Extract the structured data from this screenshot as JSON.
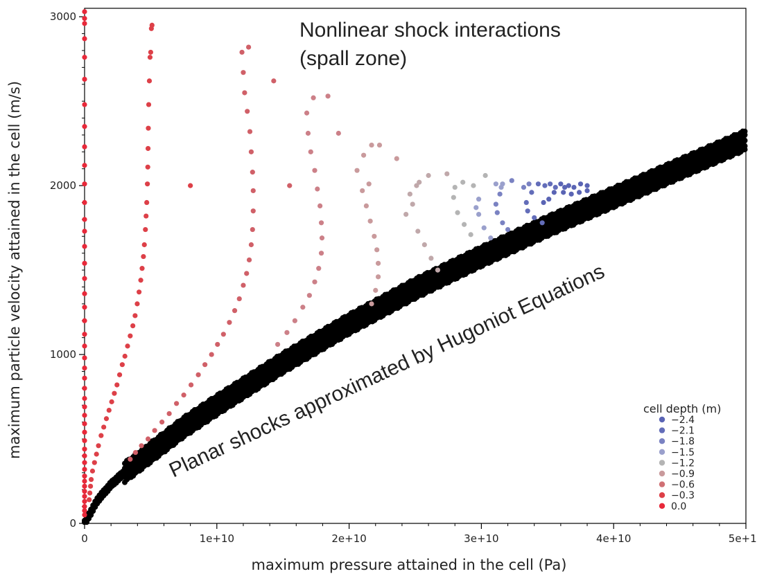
{
  "chart_data": {
    "type": "scatter",
    "xlabel": "maximum pressure attained in the cell (Pa)",
    "ylabel": "maximum particle velocity attained in the cell (m/s)",
    "xlim": [
      0,
      50000000000.0
    ],
    "ylim": [
      0,
      3050
    ],
    "x_ticks": [
      0,
      10000000000.0,
      20000000000.0,
      30000000000.0,
      40000000000.0,
      50000000000.0
    ],
    "x_tick_labels": [
      "0",
      "1e+10",
      "2e+10",
      "3e+10",
      "4e+10",
      "5e+10"
    ],
    "y_ticks": [
      0,
      1000,
      2000,
      3000
    ],
    "y_tick_labels": [
      "0",
      "1000",
      "2000",
      "3000"
    ],
    "grid": false,
    "legend_placement": "bottom-right",
    "legend": {
      "title": "cell depth (m)",
      "entries": [
        {
          "label": "−2.4",
          "color": "#5a64b4"
        },
        {
          "label": "−2.1",
          "color": "#636db9"
        },
        {
          "label": "−1.8",
          "color": "#7a82c2"
        },
        {
          "label": "−1.5",
          "color": "#9aa0cc"
        },
        {
          "label": "−1.2",
          "color": "#b4b4b4"
        },
        {
          "label": "−0.9",
          "color": "#c99a9c"
        },
        {
          "label": "−0.6",
          "color": "#d07074"
        },
        {
          "label": "−0.3",
          "color": "#dd4048"
        },
        {
          "label": " 0.0",
          "color": "#e8293a"
        }
      ]
    },
    "annotations": [
      {
        "text": "Nonlinear shock interactions",
        "text2": "(spall zone)"
      },
      {
        "text": "Planar shocks approximated by Hugoniot Equations"
      }
    ],
    "series": [
      {
        "color": "#e8293a",
        "points": [
          [
            0,
            3030
          ],
          [
            0,
            2990
          ],
          [
            0,
            2960
          ],
          [
            0,
            2870
          ],
          [
            0,
            2760
          ],
          [
            0,
            2630
          ],
          [
            0,
            2480
          ],
          [
            0,
            2350
          ],
          [
            0,
            2230
          ],
          [
            0,
            2120
          ],
          [
            0,
            2010
          ],
          [
            0,
            1900
          ],
          [
            0,
            1800
          ],
          [
            0,
            1730
          ],
          [
            0,
            1640
          ],
          [
            0,
            1540
          ],
          [
            0,
            1450
          ],
          [
            0,
            1360
          ],
          [
            0,
            1280
          ],
          [
            0,
            1200
          ],
          [
            0,
            1120
          ],
          [
            0,
            1050
          ],
          [
            0,
            980
          ],
          [
            0,
            920
          ],
          [
            0,
            860
          ],
          [
            0,
            800
          ],
          [
            0,
            740
          ],
          [
            0,
            690
          ],
          [
            0,
            640
          ],
          [
            0,
            590
          ],
          [
            0,
            540
          ],
          [
            0,
            490
          ],
          [
            0,
            440
          ],
          [
            0,
            400
          ],
          [
            0,
            360
          ],
          [
            0,
            320
          ],
          [
            0,
            280
          ],
          [
            0,
            250
          ],
          [
            0,
            220
          ],
          [
            0,
            190
          ],
          [
            0,
            160
          ],
          [
            0,
            130
          ],
          [
            0,
            100
          ],
          [
            0,
            75
          ],
          [
            0,
            50
          ]
        ]
      },
      {
        "color": "#dd4048",
        "points": [
          [
            5100000000.0,
            2950
          ],
          [
            5050000000.0,
            2930
          ],
          [
            5000000000.0,
            2790
          ],
          [
            4950000000.0,
            2760
          ],
          [
            4900000000.0,
            2620
          ],
          [
            4850000000.0,
            2480
          ],
          [
            4820000000.0,
            2340
          ],
          [
            4800000000.0,
            2220
          ],
          [
            4780000000.0,
            2110
          ],
          [
            4750000000.0,
            2010
          ],
          [
            4700000000.0,
            1900
          ],
          [
            4650000000.0,
            1820
          ],
          [
            4600000000.0,
            1740
          ],
          [
            4520000000.0,
            1650
          ],
          [
            4450000000.0,
            1580
          ],
          [
            4350000000.0,
            1510
          ],
          [
            4250000000.0,
            1440
          ],
          [
            4120000000.0,
            1370
          ],
          [
            3980000000.0,
            1300
          ],
          [
            3820000000.0,
            1230
          ],
          [
            3650000000.0,
            1170
          ],
          [
            3450000000.0,
            1110
          ],
          [
            3250000000.0,
            1050
          ],
          [
            3050000000.0,
            990
          ],
          [
            2850000000.0,
            940
          ],
          [
            2650000000.0,
            880
          ],
          [
            2450000000.0,
            820
          ],
          [
            2250000000.0,
            770
          ],
          [
            2050000000.0,
            720
          ],
          [
            1850000000.0,
            670
          ],
          [
            1650000000.0,
            620
          ],
          [
            1450000000.0,
            570
          ],
          [
            1250000000.0,
            520
          ],
          [
            1050000000.0,
            460
          ],
          [
            900000000.0,
            410
          ],
          [
            750000000.0,
            360
          ],
          [
            600000000.0,
            310
          ],
          [
            500000000.0,
            260
          ],
          [
            450000000.0,
            220
          ],
          [
            400000000.0,
            180
          ],
          [
            350000000.0,
            140
          ],
          [
            8000000000.0,
            2000
          ]
        ]
      },
      {
        "color": "#d06068",
        "points": [
          [
            12400000000.0,
            2820
          ],
          [
            11900000000.0,
            2790
          ],
          [
            12000000000.0,
            2670
          ],
          [
            12100000000.0,
            2550
          ],
          [
            12300000000.0,
            2440
          ],
          [
            12500000000.0,
            2320
          ],
          [
            12600000000.0,
            2200
          ],
          [
            12700000000.0,
            2080
          ],
          [
            12750000000.0,
            1970
          ],
          [
            12750000000.0,
            1850
          ],
          [
            12700000000.0,
            1740
          ],
          [
            12600000000.0,
            1650
          ],
          [
            12450000000.0,
            1560
          ],
          [
            12250000000.0,
            1480
          ],
          [
            12000000000.0,
            1410
          ],
          [
            11700000000.0,
            1330
          ],
          [
            11350000000.0,
            1260
          ],
          [
            10950000000.0,
            1190
          ],
          [
            10500000000.0,
            1120
          ],
          [
            10050000000.0,
            1060
          ],
          [
            9600000000.0,
            1000
          ],
          [
            9100000000.0,
            940
          ],
          [
            8600000000.0,
            880
          ],
          [
            8050000000.0,
            820
          ],
          [
            7500000000.0,
            760
          ],
          [
            6950000000.0,
            710
          ],
          [
            6400000000.0,
            650
          ],
          [
            5850000000.0,
            600
          ],
          [
            5300000000.0,
            550
          ],
          [
            4800000000.0,
            500
          ],
          [
            4300000000.0,
            460
          ],
          [
            3850000000.0,
            420
          ],
          [
            3450000000.0,
            380
          ],
          [
            14300000000.0,
            2620
          ],
          [
            15500000000.0,
            2000
          ]
        ]
      },
      {
        "color": "#cc8088",
        "points": [
          [
            17300000000.0,
            2520
          ],
          [
            18400000000.0,
            2530
          ],
          [
            16800000000.0,
            2430
          ],
          [
            16900000000.0,
            2310
          ],
          [
            17100000000.0,
            2200
          ],
          [
            17400000000.0,
            2090
          ],
          [
            17600000000.0,
            1980
          ],
          [
            17800000000.0,
            1880
          ],
          [
            17900000000.0,
            1780
          ],
          [
            17950000000.0,
            1690
          ],
          [
            17900000000.0,
            1600
          ],
          [
            17700000000.0,
            1510
          ],
          [
            17400000000.0,
            1430
          ],
          [
            17000000000.0,
            1350
          ],
          [
            16500000000.0,
            1280
          ],
          [
            15900000000.0,
            1200
          ],
          [
            15300000000.0,
            1130
          ],
          [
            14600000000.0,
            1060
          ],
          [
            19200000000.0,
            2310
          ]
        ]
      },
      {
        "color": "#c99a9c",
        "points": [
          [
            21700000000.0,
            2240
          ],
          [
            22300000000.0,
            2240
          ],
          [
            20600000000.0,
            2090
          ],
          [
            21100000000.0,
            2180
          ],
          [
            21000000000.0,
            1970
          ],
          [
            21300000000.0,
            1880
          ],
          [
            21600000000.0,
            1790
          ],
          [
            21900000000.0,
            1700
          ],
          [
            22100000000.0,
            1620
          ],
          [
            22200000000.0,
            1540
          ],
          [
            22200000000.0,
            1460
          ],
          [
            22000000000.0,
            1380
          ],
          [
            21700000000.0,
            1300
          ],
          [
            23600000000.0,
            2160
          ],
          [
            21500000000.0,
            2010
          ]
        ]
      },
      {
        "color": "#c0a8aa",
        "points": [
          [
            25300000000.0,
            2020
          ],
          [
            26000000000.0,
            2060
          ],
          [
            27400000000.0,
            2070
          ],
          [
            24600000000.0,
            1950
          ],
          [
            24300000000.0,
            1830
          ],
          [
            24800000000.0,
            1890
          ],
          [
            25200000000.0,
            1730
          ],
          [
            25700000000.0,
            1650
          ],
          [
            26200000000.0,
            1570
          ],
          [
            26700000000.0,
            1500
          ],
          [
            25100000000.0,
            2000
          ]
        ]
      },
      {
        "color": "#b4b4b4",
        "points": [
          [
            28600000000.0,
            2020
          ],
          [
            29400000000.0,
            2000
          ],
          [
            30300000000.0,
            2060
          ],
          [
            27900000000.0,
            1930
          ],
          [
            28200000000.0,
            1840
          ],
          [
            28700000000.0,
            1770
          ],
          [
            29200000000.0,
            1710
          ],
          [
            28000000000.0,
            1990
          ]
        ]
      },
      {
        "color": "#9aa0cc",
        "points": [
          [
            31100000000.0,
            2010
          ],
          [
            31600000000.0,
            2010
          ],
          [
            29800000000.0,
            1920
          ],
          [
            29600000000.0,
            1870
          ],
          [
            29800000000.0,
            1830
          ],
          [
            30200000000.0,
            1750
          ],
          [
            30700000000.0,
            1690
          ],
          [
            31500000000.0,
            1990
          ]
        ]
      },
      {
        "color": "#7a82c2",
        "points": [
          [
            32300000000.0,
            2030
          ],
          [
            33200000000.0,
            1990
          ],
          [
            33600000000.0,
            2010
          ],
          [
            31400000000.0,
            1950
          ],
          [
            31100000000.0,
            1890
          ],
          [
            31200000000.0,
            1840
          ],
          [
            31600000000.0,
            1780
          ],
          [
            32000000000.0,
            1740
          ]
        ]
      },
      {
        "color": "#636db9",
        "points": [
          [
            34300000000.0,
            2010
          ],
          [
            34800000000.0,
            2000
          ],
          [
            35200000000.0,
            2010
          ],
          [
            33800000000.0,
            1960
          ],
          [
            33400000000.0,
            1900
          ],
          [
            33500000000.0,
            1850
          ],
          [
            34000000000.0,
            1810
          ],
          [
            34600000000.0,
            1780
          ],
          [
            35600000000.0,
            1990
          ]
        ]
      },
      {
        "color": "#5a64b4",
        "points": [
          [
            36000000000.0,
            2010
          ],
          [
            36300000000.0,
            1990
          ],
          [
            36600000000.0,
            2000
          ],
          [
            37000000000.0,
            1990
          ],
          [
            37500000000.0,
            2010
          ],
          [
            38000000000.0,
            2000
          ],
          [
            35500000000.0,
            1960
          ],
          [
            35100000000.0,
            1920
          ],
          [
            36200000000.0,
            1960
          ],
          [
            36800000000.0,
            1950
          ],
          [
            37400000000.0,
            1960
          ],
          [
            38000000000.0,
            1970
          ],
          [
            34700000000.0,
            1900
          ]
        ]
      }
    ],
    "hugoniot_band": {
      "color": "#000000",
      "curve_x": [
        0,
        1000000000.0,
        2000000000.0,
        3000000000.0,
        5000000000.0,
        7500000000.0,
        10000000000.0,
        15000000000.0,
        20000000000.0,
        25000000000.0,
        30000000000.0,
        35000000000.0,
        40000000000.0,
        45000000000.0,
        50000000000.0
      ],
      "curve_y": [
        0,
        140,
        230,
        300,
        420,
        570,
        700,
        950,
        1180,
        1390,
        1580,
        1760,
        1930,
        2100,
        2270
      ]
    }
  }
}
